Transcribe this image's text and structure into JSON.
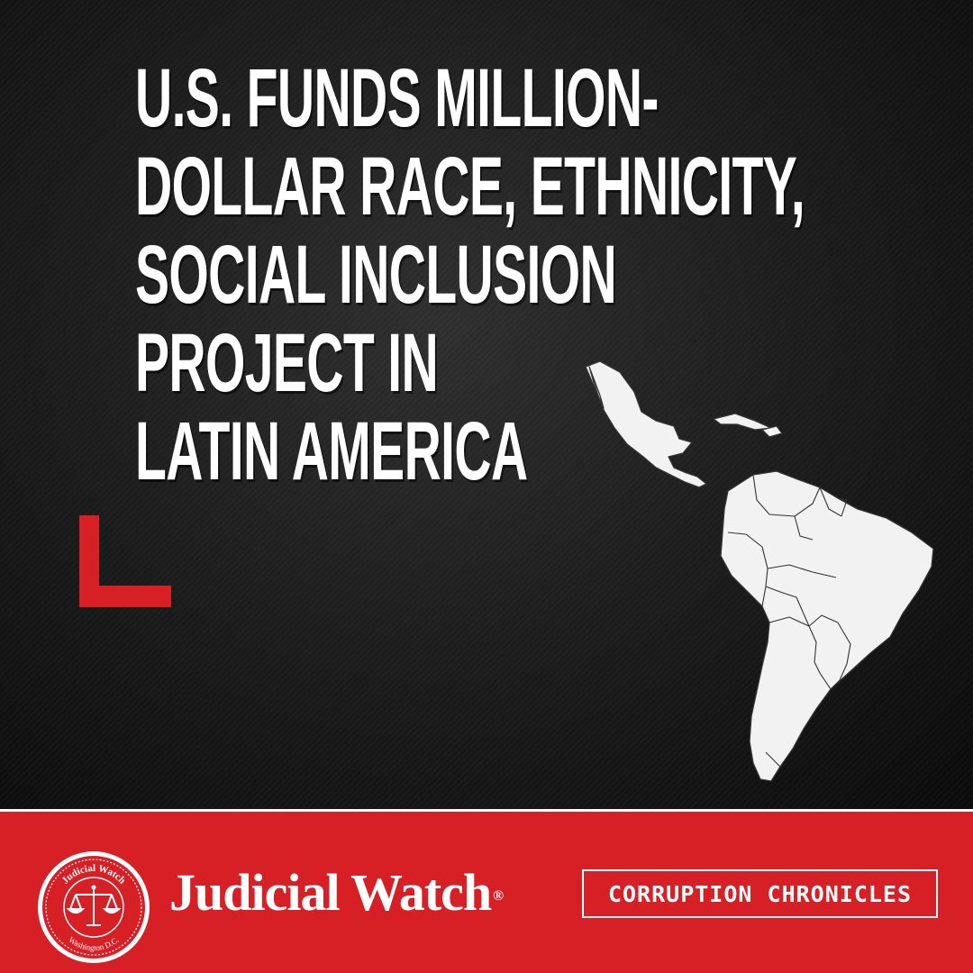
{
  "headline": {
    "lines": [
      "U.S. FUNDS MILLION-",
      "DOLLAR RACE, ETHNICITY,",
      "SOCIAL INCLUSION",
      "PROJECT IN",
      "LATIN AMERICA"
    ]
  },
  "footer": {
    "seal": {
      "top_text": "Judicial Watch",
      "bottom_text": "Washington D.C."
    },
    "brand_name": "Judicial Watch",
    "registered_mark": "®",
    "section_label": "CORRUPTION CHRONICLES"
  },
  "icons": {
    "accent": "corner-bracket-icon",
    "map": "latin-america-map-icon",
    "seal": "scales-of-justice-icon"
  },
  "colors": {
    "accent_red": "#d71f26",
    "background": "#1a1a1a",
    "text": "#ffffff",
    "map_fill": "#f2f2f2"
  }
}
